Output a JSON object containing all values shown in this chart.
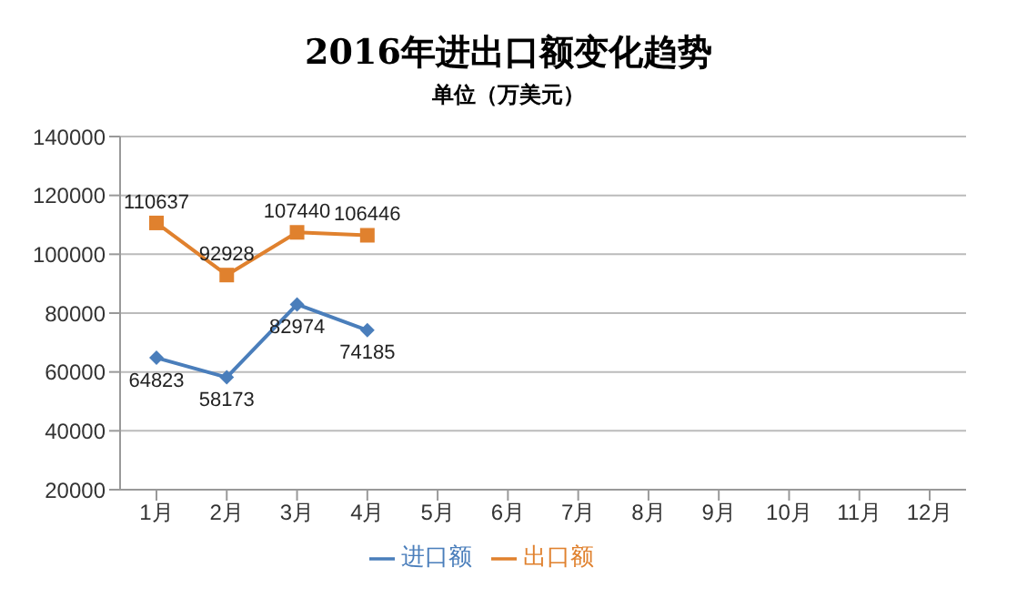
{
  "chart_data": {
    "type": "line",
    "title": "2016年进出口额变化趋势",
    "subtitle": "单位（万美元）",
    "categories": [
      "1月",
      "2月",
      "3月",
      "4月",
      "5月",
      "6月",
      "7月",
      "8月",
      "9月",
      "10月",
      "11月",
      "12月"
    ],
    "series": [
      {
        "name": "进口额",
        "color": "#4a7ebb",
        "marker": "diamond",
        "values": [
          64823,
          58173,
          82974,
          74185,
          null,
          null,
          null,
          null,
          null,
          null,
          null,
          null
        ]
      },
      {
        "name": "出口额",
        "color": "#e0812e",
        "marker": "square",
        "values": [
          110637,
          92928,
          107440,
          106446,
          null,
          null,
          null,
          null,
          null,
          null,
          null,
          null
        ]
      }
    ],
    "ylim": [
      20000,
      140000
    ],
    "yticks": [
      20000,
      40000,
      60000,
      80000,
      100000,
      120000,
      140000
    ],
    "grid": "y",
    "legend": "bottom",
    "data_labels": true
  }
}
